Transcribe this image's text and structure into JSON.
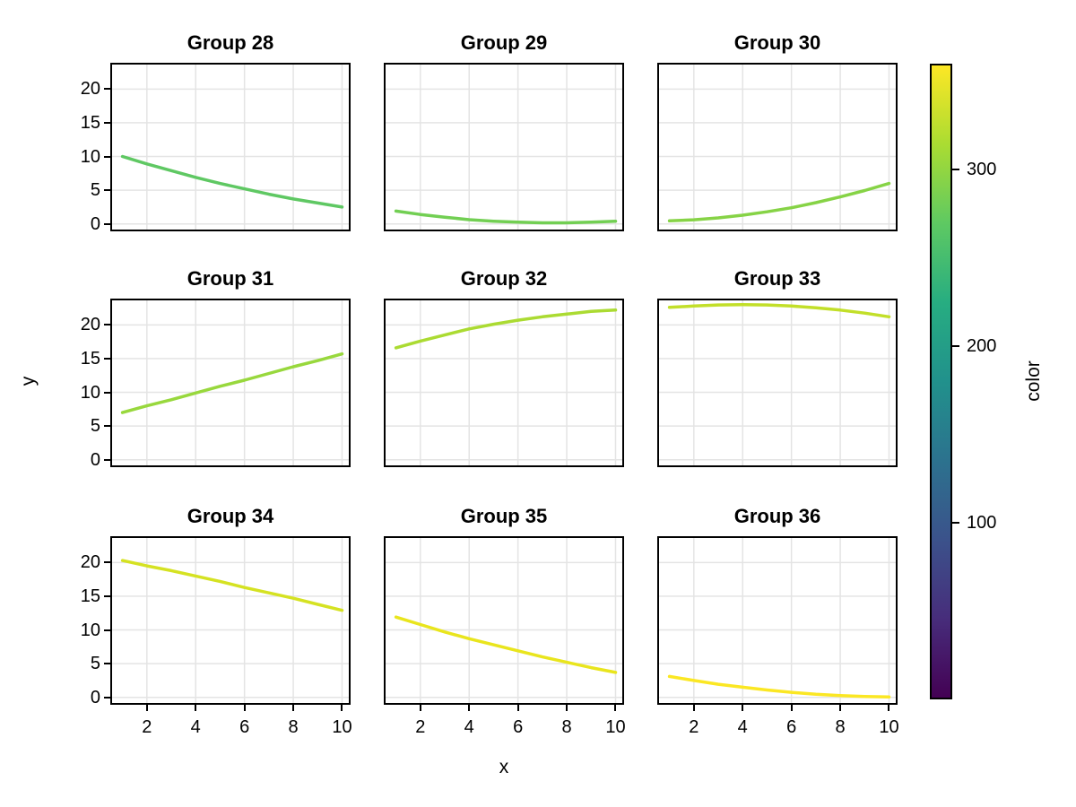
{
  "axes": {
    "x_label": "x",
    "y_label": "y",
    "x_ticks": [
      2,
      4,
      6,
      8,
      10
    ],
    "x_tick_labels": [
      "2",
      "4",
      "6",
      "8",
      "10"
    ],
    "y_ticks": [
      0,
      5,
      10,
      15,
      20
    ],
    "y_tick_labels": [
      "0",
      "5",
      "10",
      "15",
      "20"
    ],
    "grid": true,
    "gridline_color": "#e4e4e4",
    "spine_color": "#000000"
  },
  "colorbar": {
    "label": "color",
    "colormap": "viridis",
    "range": [
      0,
      360
    ],
    "ticks": [
      100,
      200,
      300
    ],
    "tick_labels": [
      "100",
      "200",
      "300"
    ],
    "gradient_stops": [
      [
        "0%",
        "#440154"
      ],
      [
        "12.5%",
        "#472d7b"
      ],
      [
        "25%",
        "#3b528b"
      ],
      [
        "37.5%",
        "#2c728e"
      ],
      [
        "50%",
        "#21918c"
      ],
      [
        "62.5%",
        "#27ad81"
      ],
      [
        "75%",
        "#5ec962"
      ],
      [
        "87.5%",
        "#aadc32"
      ],
      [
        "100%",
        "#fde725"
      ]
    ]
  },
  "chart_data": {
    "type": "line",
    "layout_note": "3x3 facet grid, shared axes, one colored line per facet",
    "x": [
      1,
      2,
      3,
      4,
      5,
      6,
      7,
      8,
      9,
      10
    ],
    "x_range": [
      0.5,
      10.35
    ],
    "y_range": [
      -1.1,
      23.9
    ],
    "facets": [
      {
        "title": "Group 28",
        "color_value": 280,
        "line_color": "#5fc863",
        "y": [
          10.0,
          8.9,
          7.9,
          6.9,
          6.0,
          5.2,
          4.4,
          3.7,
          3.1,
          2.5
        ]
      },
      {
        "title": "Group 29",
        "color_value": 290,
        "line_color": "#72cf53",
        "y": [
          1.9,
          1.4,
          1.0,
          0.63,
          0.4,
          0.25,
          0.16,
          0.16,
          0.25,
          0.4
        ]
      },
      {
        "title": "Group 30",
        "color_value": 300,
        "line_color": "#86d346",
        "y": [
          0.45,
          0.62,
          0.9,
          1.3,
          1.8,
          2.4,
          3.15,
          4.0,
          4.95,
          6.0
        ]
      },
      {
        "title": "Group 31",
        "color_value": 310,
        "line_color": "#98d83d",
        "y": [
          7.0,
          8.0,
          8.9,
          9.9,
          10.9,
          11.8,
          12.8,
          13.8,
          14.7,
          15.7
        ]
      },
      {
        "title": "Group 32",
        "color_value": 320,
        "line_color": "#abdb32",
        "y": [
          16.6,
          17.6,
          18.5,
          19.4,
          20.1,
          20.7,
          21.2,
          21.6,
          22.0,
          22.2
        ]
      },
      {
        "title": "Group 33",
        "color_value": 330,
        "line_color": "#c2df29",
        "y": [
          22.6,
          22.8,
          22.95,
          23.0,
          22.95,
          22.8,
          22.55,
          22.2,
          21.75,
          21.2
        ]
      },
      {
        "title": "Group 34",
        "color_value": 340,
        "line_color": "#d5e222",
        "y": [
          20.3,
          19.5,
          18.8,
          18.0,
          17.2,
          16.3,
          15.5,
          14.7,
          13.8,
          12.9
        ]
      },
      {
        "title": "Group 35",
        "color_value": 350,
        "line_color": "#e9e51d",
        "y": [
          11.9,
          10.8,
          9.7,
          8.7,
          7.8,
          6.9,
          6.0,
          5.2,
          4.4,
          3.7
        ]
      },
      {
        "title": "Group 36",
        "color_value": 360,
        "line_color": "#fbe723",
        "y": [
          3.1,
          2.5,
          1.95,
          1.5,
          1.1,
          0.75,
          0.46,
          0.26,
          0.13,
          0.06
        ]
      }
    ]
  }
}
